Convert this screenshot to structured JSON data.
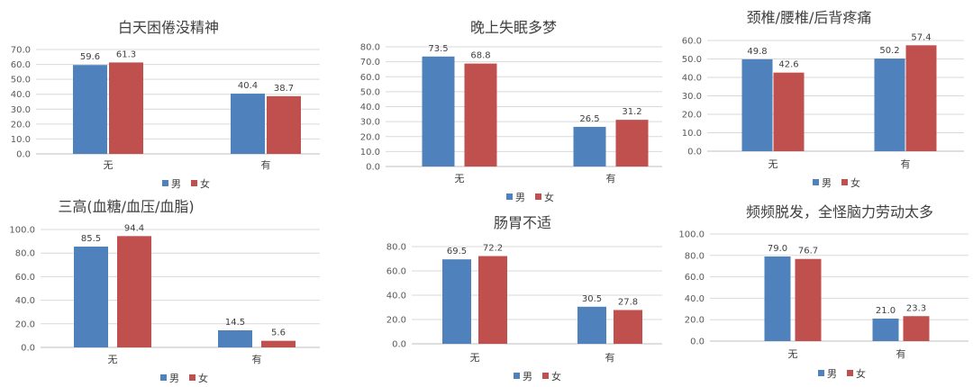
{
  "chart_data": [
    {
      "type": "bar",
      "title": "白天困倦没精神",
      "categories": [
        "无",
        "有"
      ],
      "series": [
        {
          "name": "男",
          "values": [
            59.6,
            40.4
          ]
        },
        {
          "name": "女",
          "values": [
            61.3,
            38.7
          ]
        }
      ],
      "ylim": [
        0,
        70
      ],
      "yticks": [
        "0.0",
        "10.0",
        "20.0",
        "30.0",
        "40.0",
        "50.0",
        "60.0",
        "70.0"
      ],
      "grid": true,
      "legend": "bottom",
      "colors": [
        "#4f81bd",
        "#c0504d"
      ]
    },
    {
      "type": "bar",
      "title": "晚上失眠多梦",
      "categories": [
        "无",
        "有"
      ],
      "series": [
        {
          "name": "男",
          "values": [
            73.5,
            26.5
          ]
        },
        {
          "name": "女",
          "values": [
            68.8,
            31.2
          ]
        }
      ],
      "ylim": [
        0,
        80
      ],
      "yticks": [
        "0.0",
        "10.0",
        "20.0",
        "30.0",
        "40.0",
        "50.0",
        "60.0",
        "70.0",
        "80.0"
      ],
      "grid": true,
      "legend": "bottom",
      "colors": [
        "#4f81bd",
        "#c0504d"
      ]
    },
    {
      "type": "bar",
      "title": "颈椎/腰椎/后背疼痛",
      "categories": [
        "无",
        "有"
      ],
      "series": [
        {
          "name": "男",
          "values": [
            49.8,
            50.2
          ]
        },
        {
          "name": "女",
          "values": [
            42.6,
            57.4
          ]
        }
      ],
      "ylim": [
        0,
        60
      ],
      "yticks": [
        "0.0",
        "10.0",
        "20.0",
        "30.0",
        "40.0",
        "50.0",
        "60.0"
      ],
      "grid": true,
      "legend": "bottom",
      "colors": [
        "#4f81bd",
        "#c0504d"
      ]
    },
    {
      "type": "bar",
      "title": "三高(血糖/血压/血脂)",
      "categories": [
        "无",
        "有"
      ],
      "series": [
        {
          "name": "男",
          "values": [
            85.5,
            14.5
          ]
        },
        {
          "name": "女",
          "values": [
            94.4,
            5.6
          ]
        }
      ],
      "ylim": [
        0,
        100
      ],
      "yticks": [
        "0.0",
        "20.0",
        "40.0",
        "60.0",
        "80.0",
        "100.0"
      ],
      "grid": true,
      "legend": "bottom",
      "colors": [
        "#4f81bd",
        "#c0504d"
      ]
    },
    {
      "type": "bar",
      "title": "肠胃不适",
      "categories": [
        "无",
        "有"
      ],
      "series": [
        {
          "name": "男",
          "values": [
            69.5,
            30.5
          ]
        },
        {
          "name": "女",
          "values": [
            72.2,
            27.8
          ]
        }
      ],
      "ylim": [
        0,
        80
      ],
      "yticks": [
        "0.0",
        "20.0",
        "40.0",
        "60.0",
        "80.0"
      ],
      "grid": true,
      "legend": "bottom",
      "colors": [
        "#4f81bd",
        "#c0504d"
      ]
    },
    {
      "type": "bar",
      "title": "频频脱发，全怪脑力劳动太多",
      "categories": [
        "无",
        "有"
      ],
      "series": [
        {
          "name": "男",
          "values": [
            79.0,
            21.0
          ]
        },
        {
          "name": "女",
          "values": [
            76.7,
            23.3
          ]
        }
      ],
      "ylim": [
        0,
        100
      ],
      "yticks": [
        "0.0",
        "20.0",
        "40.0",
        "60.0",
        "80.0",
        "100.0"
      ],
      "grid": true,
      "legend": "bottom",
      "colors": [
        "#4f81bd",
        "#c0504d"
      ]
    }
  ]
}
